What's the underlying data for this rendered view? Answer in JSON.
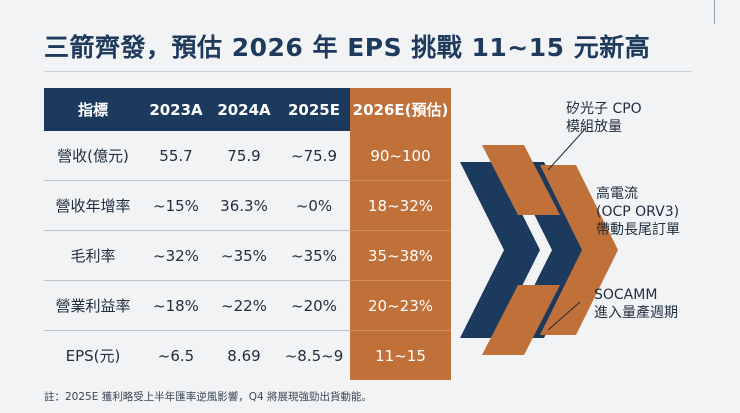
{
  "title": "三箭齊發，預估 2026 年 EPS 挑戰 11~15 元新高",
  "table": {
    "headers": [
      "指標",
      "2023A",
      "2024A",
      "2025E",
      "2026E(預估)"
    ],
    "rows": [
      {
        "label": "營收(億元)",
        "v2023": "55.7",
        "v2024": "75.9",
        "v2025": "~75.9",
        "v2026": "90~100"
      },
      {
        "label": "營收年增率",
        "v2023": "~15%",
        "v2024": "36.3%",
        "v2025": "~0%",
        "v2026": "18~32%"
      },
      {
        "label": "毛利率",
        "v2023": "~32%",
        "v2024": "~35%",
        "v2025": "~35%",
        "v2026": "35~38%"
      },
      {
        "label": "營業利益率",
        "v2023": "~18%",
        "v2024": "~22%",
        "v2025": "~20%",
        "v2026": "20~23%"
      },
      {
        "label": "EPS(元)",
        "v2023": "~6.5",
        "v2024": "8.69",
        "v2025": "~8.5~9",
        "v2026": "11~15"
      }
    ]
  },
  "drivers": [
    {
      "line1": "矽光子 CPO",
      "line2": "模組放量"
    },
    {
      "line1": "高電流",
      "line2": "(OCP ORV3)",
      "line3": "帶動長尾訂單"
    },
    {
      "line1": "SOCAMM",
      "line2": "進入量產週期"
    }
  ],
  "note": "註：2025E 獲利略受上半年匯率逆風影響，Q4 將展現強勁出貨動能。",
  "colors": {
    "navy": "#1b3a5e",
    "orange": "#c0713a",
    "background": "#f1f3f5"
  }
}
